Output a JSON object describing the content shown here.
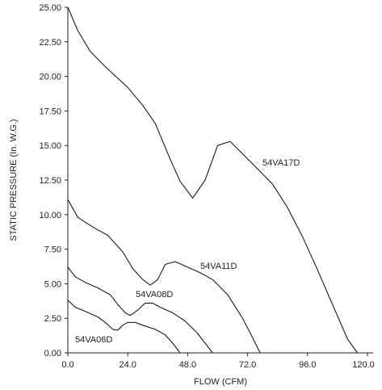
{
  "chart_data": {
    "type": "line",
    "title": "",
    "xlabel": "FLOW (CFM)",
    "ylabel": "STATIC PRESSURE (In. W.G.)",
    "xlim": [
      0,
      120
    ],
    "ylim": [
      0,
      25
    ],
    "x_ticks": [
      "0.0",
      "24.0",
      "48.0",
      "72.0",
      "96.0",
      "120.0"
    ],
    "y_ticks": [
      "0.00",
      "2.50",
      "5.00",
      "7.50",
      "10.00",
      "12.50",
      "15.00",
      "17.50",
      "20.00",
      "22.50",
      "25.00"
    ],
    "grid": false,
    "line_color": "#1a1a1a",
    "series": [
      {
        "name": "54VA17D",
        "points": [
          [
            0,
            25
          ],
          [
            4,
            23.3
          ],
          [
            9,
            21.8
          ],
          [
            15,
            20.7
          ],
          [
            24,
            19.2
          ],
          [
            30,
            17.9
          ],
          [
            35,
            16.6
          ],
          [
            41,
            14
          ],
          [
            45,
            12.4
          ],
          [
            50,
            11.2
          ],
          [
            55,
            12.5
          ],
          [
            60,
            15
          ],
          [
            65,
            15.3
          ],
          [
            70,
            14.4
          ],
          [
            76,
            13.3
          ],
          [
            82,
            12.2
          ],
          [
            88,
            10.5
          ],
          [
            94,
            8.4
          ],
          [
            100,
            6
          ],
          [
            106,
            3.5
          ],
          [
            112,
            1
          ],
          [
            116,
            0
          ]
        ]
      },
      {
        "name": "54VA11D",
        "points": [
          [
            0,
            11.1
          ],
          [
            4,
            9.8
          ],
          [
            10,
            9.1
          ],
          [
            16,
            8.5
          ],
          [
            22,
            7.3
          ],
          [
            26,
            6.1
          ],
          [
            30,
            5.3
          ],
          [
            33,
            4.9
          ],
          [
            36,
            5.3
          ],
          [
            39,
            6.4
          ],
          [
            43,
            6.6
          ],
          [
            48,
            6.2
          ],
          [
            53,
            5.8
          ],
          [
            58,
            5.3
          ],
          [
            64,
            4.2
          ],
          [
            70,
            2.5
          ],
          [
            74,
            1.1
          ],
          [
            77,
            0
          ]
        ]
      },
      {
        "name": "54VA08D",
        "points": [
          [
            0,
            6.2
          ],
          [
            3,
            5.5
          ],
          [
            7,
            5.1
          ],
          [
            12,
            4.7
          ],
          [
            17,
            4.2
          ],
          [
            20,
            3.5
          ],
          [
            23,
            2.9
          ],
          [
            25,
            2.7
          ],
          [
            28,
            3.1
          ],
          [
            31,
            3.6
          ],
          [
            34,
            3.6
          ],
          [
            37,
            3.3
          ],
          [
            42,
            2.9
          ],
          [
            47,
            2.3
          ],
          [
            52,
            1.4
          ],
          [
            55,
            0.7
          ],
          [
            58,
            0
          ]
        ]
      },
      {
        "name": "54VA06D",
        "points": [
          [
            0,
            3.8
          ],
          [
            3,
            3.3
          ],
          [
            7,
            3.0
          ],
          [
            12,
            2.6
          ],
          [
            15,
            2.2
          ],
          [
            18,
            1.7
          ],
          [
            20,
            1.65
          ],
          [
            22,
            2.0
          ],
          [
            24,
            2.2
          ],
          [
            27,
            2.2
          ],
          [
            30,
            2.0
          ],
          [
            35,
            1.7
          ],
          [
            39,
            1.3
          ],
          [
            42,
            0.7
          ],
          [
            45,
            0
          ]
        ]
      }
    ]
  }
}
